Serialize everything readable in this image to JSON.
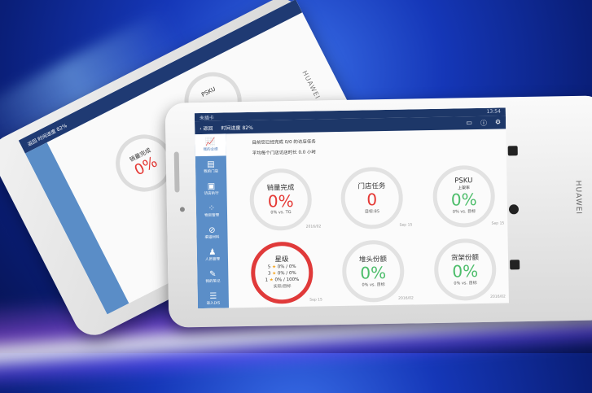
{
  "status": {
    "carrier": "未插卡",
    "time": "13:54"
  },
  "header": {
    "back": "返回",
    "progress": "时间进度 82%"
  },
  "sidebar": {
    "items": [
      {
        "label": "我的业绩",
        "icon": "chart-icon"
      },
      {
        "label": "我的门店",
        "icon": "store-icon"
      },
      {
        "label": "访店执行",
        "icon": "clipboard-icon"
      },
      {
        "label": "物资管理",
        "icon": "grid-icon"
      },
      {
        "label": "渠道材料",
        "icon": "paperclip-icon"
      },
      {
        "label": "人员管理",
        "icon": "people-icon"
      },
      {
        "label": "我的笔记",
        "icon": "note-icon"
      },
      {
        "label": "进入DIS",
        "icon": "list-icon"
      }
    ]
  },
  "summary": {
    "line1": "目前您已经完成 0/0 的访店任务",
    "line2": "平均每个门店访店时长 0.0 小时"
  },
  "cards": [
    {
      "title": "销量完成",
      "value": "0%",
      "sub": "0% vs. TG",
      "date": "2016/02",
      "color": "#e53935"
    },
    {
      "title": "门店任务",
      "value": "0",
      "sub": "目标:85",
      "date": "Sep 15",
      "color": "#e53935"
    },
    {
      "title": "PSKU",
      "subtitle": "上架率",
      "value": "0%",
      "sub": "0% vs. 目标",
      "date": "Sep 15",
      "color": "#4cbd6a"
    },
    {
      "title": "星级",
      "stars": [
        {
          "n": "5",
          "v": "0% / 0%"
        },
        {
          "n": "3",
          "v": "0% / 0%"
        },
        {
          "n": "1",
          "v": "0% / 100%"
        }
      ],
      "sub": "实际/目标",
      "date": "Sep 15",
      "color": "#e03a3a"
    },
    {
      "title": "堆头份额",
      "value": "0%",
      "sub": "0% vs. 目标",
      "date": "2016/02",
      "color": "#4cbd6a"
    },
    {
      "title": "货架份额",
      "value": "0%",
      "sub": "0% vs. 目标",
      "date": "2016/02",
      "color": "#4cbd6a"
    }
  ],
  "brand": "HUAWEI"
}
